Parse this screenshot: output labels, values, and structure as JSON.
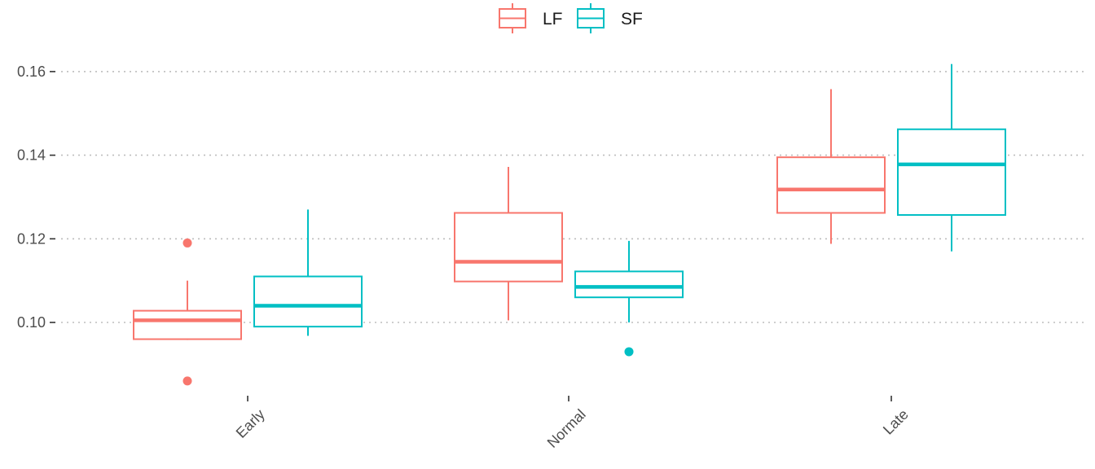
{
  "chart_data": {
    "type": "boxplot",
    "title": "",
    "xlabel": "",
    "ylabel": "",
    "categories": [
      "Early",
      "Normal",
      "Late"
    ],
    "ylim": [
      0.082,
      0.162
    ],
    "yticks": [
      0.1,
      0.12,
      0.14,
      0.16
    ],
    "ytick_labels": [
      "0.10",
      "0.12",
      "0.14",
      "0.16"
    ],
    "grid": "horizontal-major-dotted",
    "legend_position": "top",
    "series": [
      {
        "name": "LF",
        "color": "#F8766D",
        "boxes": [
          {
            "category": "Early",
            "whisker_low": 0.0958,
            "q1": 0.096,
            "median": 0.1005,
            "q3": 0.1028,
            "whisker_high": 0.11,
            "outliers": [
              0.119,
              0.086
            ]
          },
          {
            "category": "Normal",
            "whisker_low": 0.1005,
            "q1": 0.1098,
            "median": 0.1145,
            "q3": 0.1262,
            "whisker_high": 0.1372,
            "outliers": []
          },
          {
            "category": "Late",
            "whisker_low": 0.1188,
            "q1": 0.1262,
            "median": 0.1318,
            "q3": 0.1395,
            "whisker_high": 0.1558,
            "outliers": []
          }
        ]
      },
      {
        "name": "SF",
        "color": "#00BFC4",
        "boxes": [
          {
            "category": "Early",
            "whisker_low": 0.0968,
            "q1": 0.099,
            "median": 0.104,
            "q3": 0.111,
            "whisker_high": 0.127,
            "outliers": []
          },
          {
            "category": "Normal",
            "whisker_low": 0.1,
            "q1": 0.106,
            "median": 0.1085,
            "q3": 0.1122,
            "whisker_high": 0.1195,
            "outliers": [
              0.093
            ]
          },
          {
            "category": "Late",
            "whisker_low": 0.117,
            "q1": 0.1257,
            "median": 0.1378,
            "q3": 0.1462,
            "whisker_high": 0.1618,
            "outliers": []
          }
        ]
      }
    ]
  }
}
